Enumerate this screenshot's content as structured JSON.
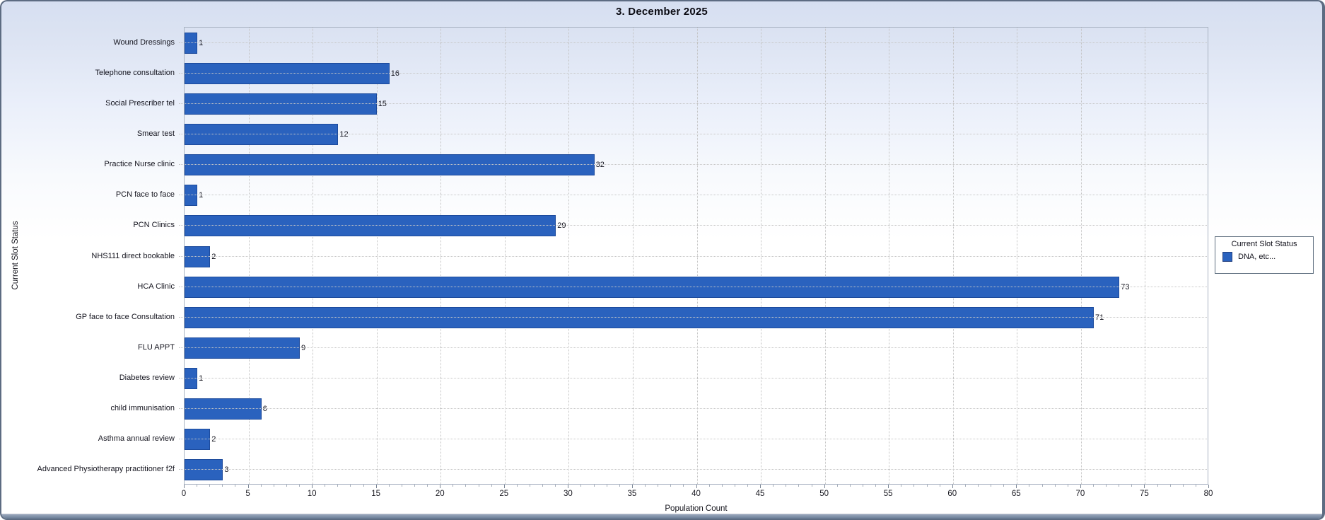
{
  "window": {
    "title": "3. December 2025"
  },
  "chart_data": {
    "type": "bar",
    "orientation": "horizontal",
    "title": "3. December 2025",
    "categories": [
      "Wound Dressings",
      "Telephone consultation",
      "Social Prescriber tel",
      "Smear test",
      "Practice Nurse clinic",
      "PCN face to face",
      "PCN Clinics",
      "NHS111 direct bookable",
      "HCA Clinic",
      "GP face to face Consultation",
      "FLU APPT",
      "Diabetes review",
      "child immunisation",
      "Asthma annual review",
      "Advanced Physiotherapy practitioner f2f"
    ],
    "values": [
      1,
      16,
      15,
      12,
      32,
      1,
      29,
      2,
      73,
      71,
      9,
      1,
      6,
      2,
      3
    ],
    "series_name": "DNA, etc...",
    "xlabel": "Population Count",
    "ylabel": "Current Slot Status",
    "xlim": [
      0,
      80
    ],
    "x_tick_step": 5,
    "x_minor_tick_step": 1,
    "grid": "vertical-dotted",
    "data_labels": "shown-at-bar-end",
    "legend": {
      "position": "right",
      "title": "Current Slot Status",
      "entries": [
        {
          "label": "DNA, etc...",
          "color": "#2a62be"
        }
      ]
    },
    "colors": {
      "bar_fill": "#2a62be",
      "bar_border": "#1c4a9c",
      "gridline": "#c2c2c2",
      "window_border": "#5d6c82",
      "background_top": "#d6dff1",
      "background_bottom": "#ffffff",
      "bottom_bar": "#697c95"
    }
  }
}
